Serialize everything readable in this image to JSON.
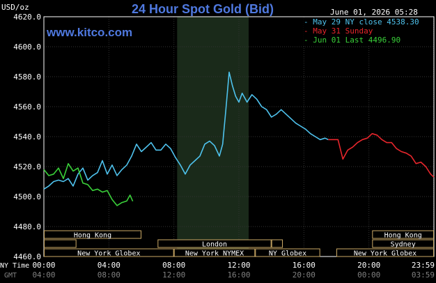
{
  "chart_data": {
    "type": "line",
    "title": "24 Hour Spot Gold (Bid)",
    "y_unit": "USD/oz",
    "timestamp": "June 01, 2026 05:28",
    "watermark": "www.kitco.com",
    "ylim": [
      4460,
      4620
    ],
    "y_ticks": [
      "4620.0",
      "4600.0",
      "4580.0",
      "4560.0",
      "4540.0",
      "4520.0",
      "4500.0",
      "4480.0",
      "4460.0"
    ],
    "y_tick_values": [
      4620,
      4600,
      4580,
      4560,
      4540,
      4520,
      4500,
      4480,
      4460
    ],
    "x_label_ny": "NY Time",
    "x_label_gmt": "GMT",
    "x_ticks_ny": [
      "00:00",
      "04:00",
      "08:00",
      "12:00",
      "16:00",
      "20:00",
      "23:59"
    ],
    "x_ticks_gmt": [
      "04:00",
      "08:00",
      "12:00",
      "16:00",
      "20:00",
      "00:00",
      "03:59"
    ],
    "x_tick_hours": [
      0,
      4,
      8,
      12,
      16,
      20,
      23.98
    ],
    "xlim": [
      0,
      24
    ],
    "nymex_hours": [
      8.2,
      12.6
    ],
    "legend": [
      {
        "label": "May 29 NY close 4538.30",
        "color": "#4fc3ee"
      },
      {
        "label": "May 31 Sunday",
        "color": "#e8262c"
      },
      {
        "label": "Jun 01 Last 4496.90",
        "color": "#3ad13a"
      }
    ],
    "series": [
      {
        "name": "May 29",
        "color": "#4fc3ee",
        "x": [
          0,
          0.3,
          0.6,
          0.9,
          1.2,
          1.5,
          1.8,
          2.1,
          2.4,
          2.7,
          3.0,
          3.3,
          3.6,
          3.9,
          4.2,
          4.5,
          4.8,
          5.1,
          5.4,
          5.7,
          6.0,
          6.3,
          6.6,
          6.9,
          7.2,
          7.5,
          7.8,
          8.1,
          8.4,
          8.7,
          9.0,
          9.3,
          9.6,
          9.9,
          10.2,
          10.5,
          10.8,
          11.0,
          11.2,
          11.4,
          11.6,
          11.8,
          12.0,
          12.2,
          12.5,
          12.8,
          13.1,
          13.4,
          13.7,
          14.0,
          14.3,
          14.6,
          14.9,
          15.2,
          15.5,
          15.8,
          16.1,
          16.4,
          16.7,
          17.0,
          17.3,
          17.5
        ],
        "y": [
          4505,
          4507,
          4510,
          4511,
          4510,
          4512,
          4507,
          4515,
          4519,
          4511,
          4514,
          4516,
          4524,
          4515,
          4521,
          4514,
          4518,
          4521,
          4527,
          4535,
          4530,
          4533,
          4536,
          4531,
          4531,
          4535,
          4532,
          4526,
          4521,
          4515,
          4521,
          4524,
          4527,
          4535,
          4537,
          4534,
          4527,
          4535,
          4558,
          4583,
          4574,
          4567,
          4563,
          4569,
          4563,
          4568,
          4565,
          4560,
          4558,
          4553,
          4555,
          4558,
          4555,
          4552,
          4549,
          4547,
          4545,
          4542,
          4540,
          4538,
          4539,
          4538
        ]
      },
      {
        "name": "May 31",
        "color": "#e8262c",
        "x": [
          17.5,
          17.8,
          18.1,
          18.4,
          18.7,
          19.0,
          19.3,
          19.6,
          19.9,
          20.2,
          20.5,
          20.8,
          21.1,
          21.4,
          21.7,
          22.0,
          22.3,
          22.6,
          22.9,
          23.2,
          23.5,
          23.8,
          24.0
        ],
        "y": [
          4538,
          4538,
          4538,
          4525,
          4531,
          4533,
          4536,
          4538,
          4539,
          4542,
          4541,
          4538,
          4536,
          4536,
          4532,
          4530,
          4529,
          4527,
          4522,
          4523,
          4520,
          4515,
          4513
        ]
      },
      {
        "name": "Jun 01",
        "color": "#3ad13a",
        "x": [
          0,
          0.3,
          0.6,
          0.9,
          1.2,
          1.5,
          1.8,
          2.1,
          2.4,
          2.7,
          3.0,
          3.3,
          3.6,
          3.9,
          4.2,
          4.5,
          4.8,
          5.1,
          5.3,
          5.47
        ],
        "y": [
          4518,
          4514,
          4515,
          4519,
          4512,
          4522,
          4517,
          4519,
          4509,
          4508,
          4504,
          4505,
          4503,
          4504,
          4498,
          4494,
          4496,
          4497,
          4501,
          4496.9
        ]
      }
    ],
    "sessions": [
      {
        "label": "Hong Kong",
        "row": 0,
        "start_hour": 0,
        "end_hour": 6
      },
      {
        "label": "Hong Kong",
        "row": 0,
        "start_hour": 20.2,
        "end_hour": 24
      },
      {
        "label": "",
        "row": 1,
        "start_hour": 0,
        "end_hour": 2
      },
      {
        "label": "London",
        "row": 1,
        "start_hour": 7,
        "end_hour": 14
      },
      {
        "label": "",
        "row": 1,
        "start_hour": 14,
        "end_hour": 14.7
      },
      {
        "label": "Sydney",
        "row": 1,
        "start_hour": 20.2,
        "end_hour": 24
      },
      {
        "label": "New York Globex",
        "row": 2,
        "start_hour": 0,
        "end_hour": 8
      },
      {
        "label": "New York NYMEX",
        "row": 2,
        "start_hour": 8,
        "end_hour": 13
      },
      {
        "label": "NY Globex",
        "row": 2,
        "start_hour": 13,
        "end_hour": 17
      },
      {
        "label": "New York Globex",
        "row": 2,
        "start_hour": 18,
        "end_hour": 24
      }
    ]
  }
}
